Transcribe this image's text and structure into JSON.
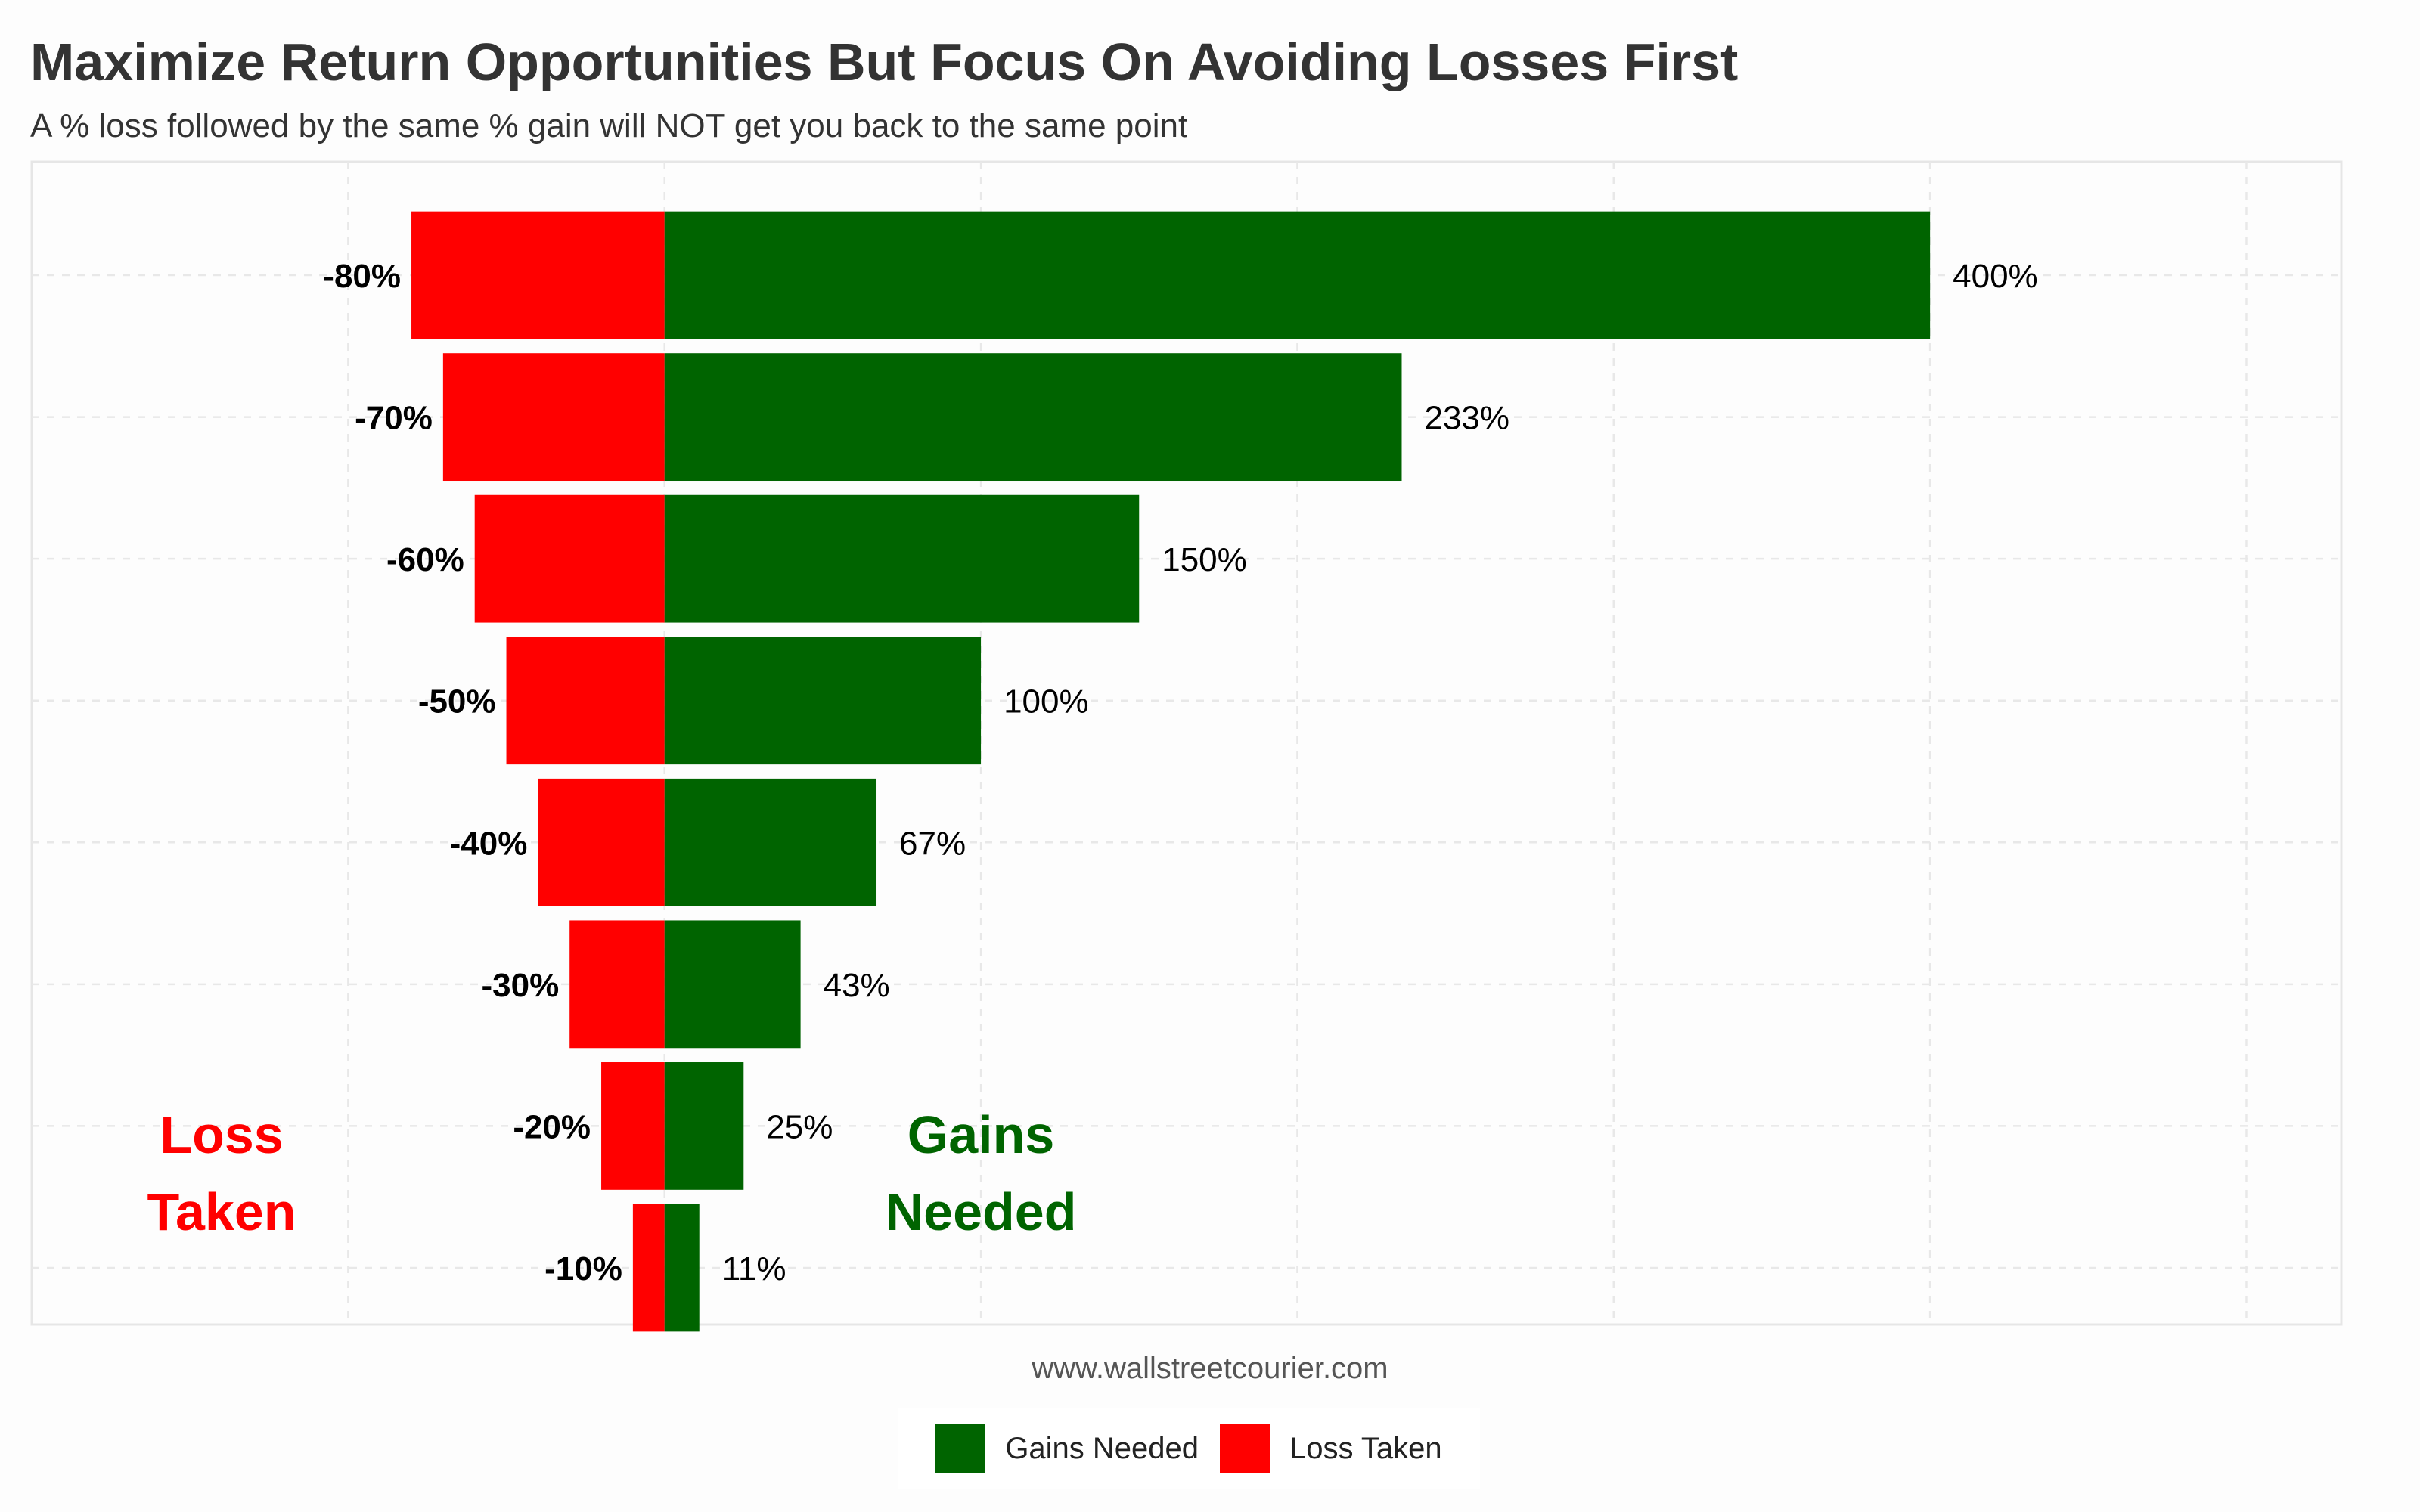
{
  "chart_data": {
    "type": "bar",
    "orientation": "horizontal",
    "title": "Maximize Return Opportunities But Focus On Avoiding Losses First",
    "subtitle": "A % loss followed by the same % gain will NOT get you back to the same point",
    "caption": "www.wallstreetcourier.com",
    "categories": [
      "-80%",
      "-70%",
      "-60%",
      "-50%",
      "-40%",
      "-30%",
      "-20%",
      "-10%"
    ],
    "series": [
      {
        "name": "Gains Needed",
        "color": "#006400",
        "values": [
          400,
          233,
          150,
          100,
          67,
          43,
          25,
          11
        ],
        "labels": [
          "400%",
          "233%",
          "150%",
          "100%",
          "67%",
          "43%",
          "25%",
          "11%"
        ]
      },
      {
        "name": "Loss Taken",
        "color": "#ff0000",
        "values": [
          -80,
          -70,
          -60,
          -50,
          -40,
          -30,
          -20,
          -10
        ],
        "labels": [
          "-80%",
          "-70%",
          "-60%",
          "-50%",
          "-40%",
          "-30%",
          "-20%",
          "-10%"
        ]
      }
    ],
    "annotations": {
      "loss": {
        "lines": [
          "Loss",
          "Taken"
        ],
        "color": "#ff0000"
      },
      "gains": {
        "lines": [
          "Gains",
          "Needed"
        ],
        "color": "#006400"
      }
    },
    "xlim": [
      -200,
      530
    ],
    "grid": true,
    "legend": "bottom"
  }
}
